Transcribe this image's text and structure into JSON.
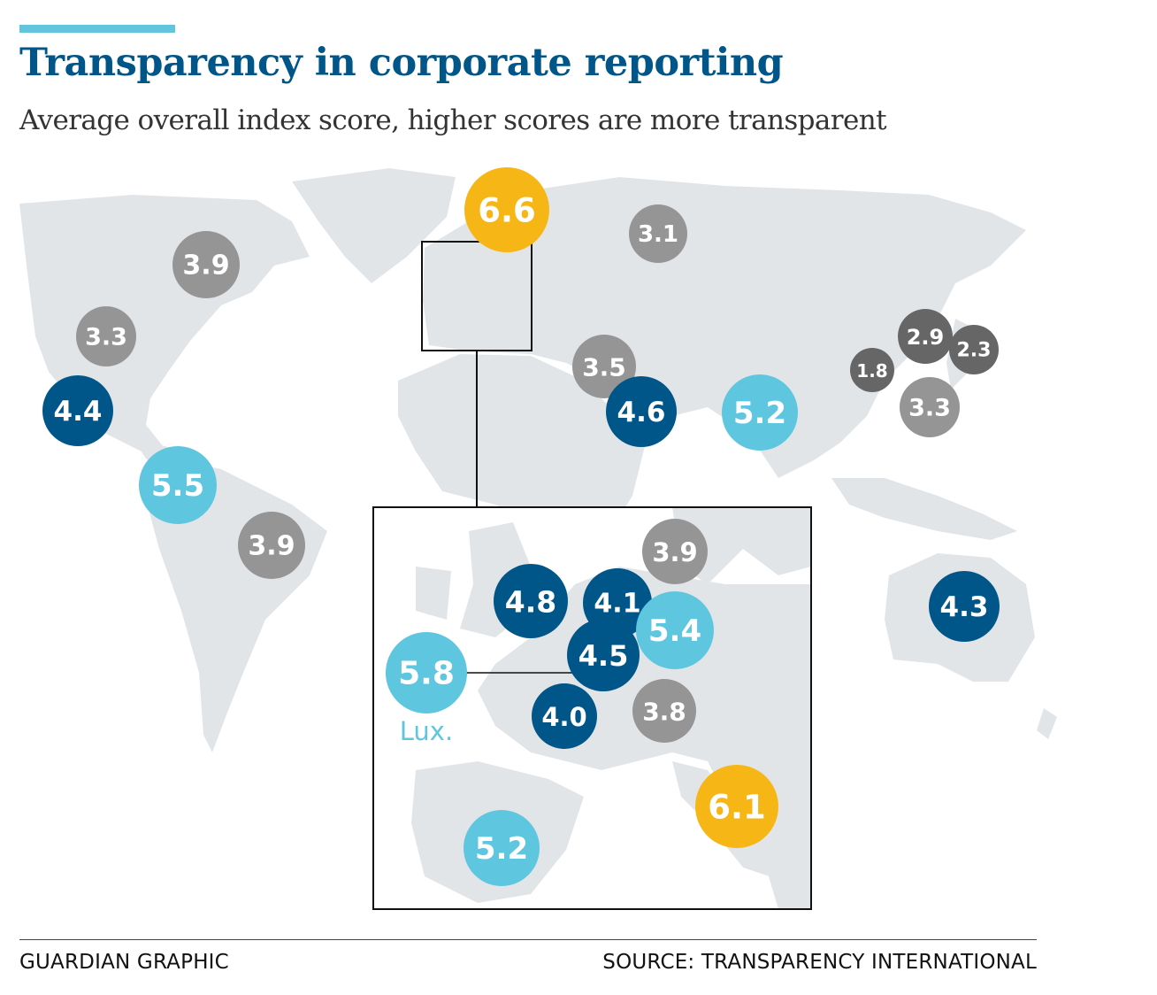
{
  "header": {
    "title": "Transparency in corporate reporting",
    "subtitle": "Average overall index score, higher scores are more transparent"
  },
  "footer": {
    "credit": "GUARDIAN GRAPHIC",
    "source": "SOURCE: TRANSPARENCY INTERNATIONAL"
  },
  "colors": {
    "title": "#005689",
    "accent": "#63c4de",
    "land": "#e2e5e8",
    "score_gold": "#f6b616",
    "score_light_blue": "#5ec6df",
    "score_dark_blue": "#005689",
    "score_grey": "#959595",
    "score_dark_grey": "#666666"
  },
  "map": {
    "world_scores": [
      {
        "id": "nordics",
        "value": "6.6",
        "color": "gold"
      },
      {
        "id": "russia",
        "value": "3.1",
        "color": "grey"
      },
      {
        "id": "canada",
        "value": "3.9",
        "color": "grey"
      },
      {
        "id": "usa",
        "value": "3.3",
        "color": "grey"
      },
      {
        "id": "mexico",
        "value": "4.4",
        "color": "dark_blue"
      },
      {
        "id": "colombia",
        "value": "5.5",
        "color": "light_blue"
      },
      {
        "id": "brazil",
        "value": "3.9",
        "color": "grey"
      },
      {
        "id": "turkey",
        "value": "3.5",
        "color": "grey"
      },
      {
        "id": "gulf",
        "value": "4.6",
        "color": "dark_blue"
      },
      {
        "id": "india",
        "value": "5.2",
        "color": "light_blue"
      },
      {
        "id": "china",
        "value": "1.8",
        "color": "dark_grey"
      },
      {
        "id": "south-korea",
        "value": "2.9",
        "color": "dark_grey"
      },
      {
        "id": "japan",
        "value": "2.3",
        "color": "dark_grey"
      },
      {
        "id": "taiwan",
        "value": "3.3",
        "color": "grey"
      },
      {
        "id": "australia",
        "value": "4.3",
        "color": "dark_blue"
      }
    ],
    "inset_scores": [
      {
        "id": "uk",
        "value": "4.8",
        "color": "dark_blue"
      },
      {
        "id": "netherlands",
        "value": "4.1",
        "color": "dark_blue"
      },
      {
        "id": "belgium",
        "value": "4.5",
        "color": "dark_blue"
      },
      {
        "id": "germany",
        "value": "5.4",
        "color": "light_blue"
      },
      {
        "id": "sweden",
        "value": "3.9",
        "color": "grey"
      },
      {
        "id": "switzerland",
        "value": "3.8",
        "color": "grey"
      },
      {
        "id": "france",
        "value": "4.0",
        "color": "dark_blue"
      },
      {
        "id": "luxembourg",
        "value": "5.8",
        "color": "light_blue"
      },
      {
        "id": "italy",
        "value": "6.1",
        "color": "gold"
      },
      {
        "id": "spain",
        "value": "5.2",
        "color": "light_blue"
      }
    ],
    "luxembourg_label": "Lux."
  }
}
